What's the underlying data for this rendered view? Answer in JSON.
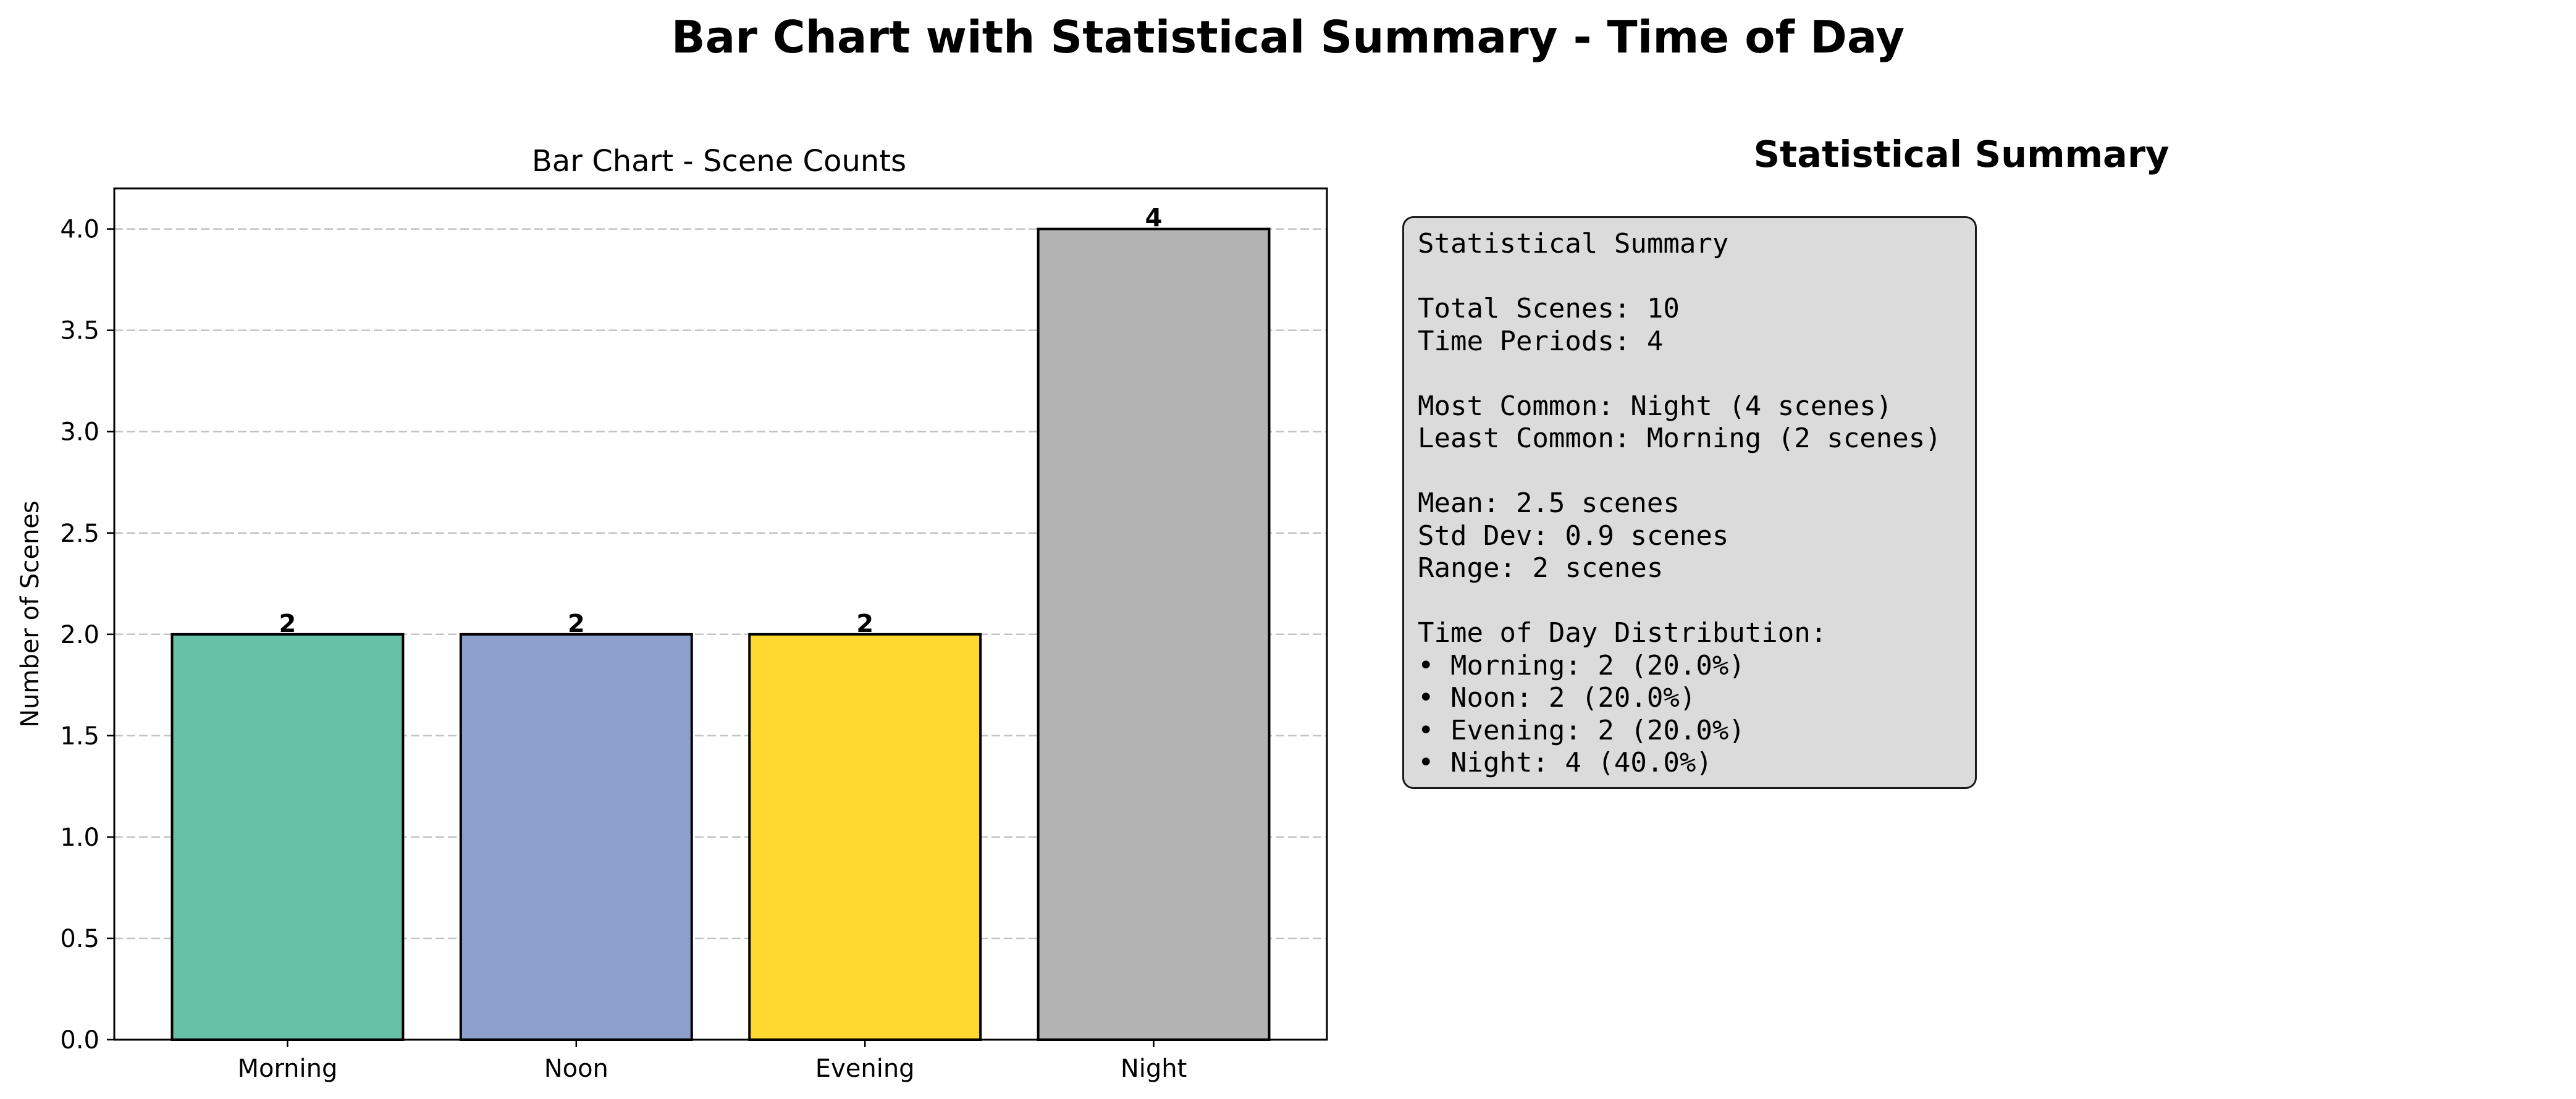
{
  "figure": {
    "title": "Bar Chart with Statistical Summary - Time of Day"
  },
  "chart_data": {
    "type": "bar",
    "title": "Bar Chart - Scene Counts",
    "xlabel": "",
    "ylabel": "Number of Scenes",
    "categories": [
      "Morning",
      "Noon",
      "Evening",
      "Night"
    ],
    "values": [
      2,
      2,
      2,
      4
    ],
    "data_labels": [
      "2",
      "2",
      "2",
      "4"
    ],
    "colors": [
      "#66c2a5",
      "#8da0cb",
      "#ffd92f",
      "#b3b3b3"
    ],
    "ylim": [
      0,
      4.2
    ],
    "yticks": [
      0.0,
      0.5,
      1.0,
      1.5,
      2.0,
      2.5,
      3.0,
      3.5,
      4.0
    ],
    "ytick_labels": [
      "0.0",
      "0.5",
      "1.0",
      "1.5",
      "2.0",
      "2.5",
      "3.0",
      "3.5",
      "4.0"
    ],
    "grid": "y-axis dashed",
    "edge_color": "#000000"
  },
  "summary": {
    "heading": "Statistical Summary",
    "lines": [
      "Statistical Summary",
      "",
      "Total Scenes: 10",
      "Time Periods: 4",
      "",
      "Most Common: Night (4 scenes)",
      "Least Common: Morning (2 scenes)",
      "",
      "Mean: 2.5 scenes",
      "Std Dev: 0.9 scenes",
      "Range: 2 scenes",
      "",
      "Time of Day Distribution:",
      "• Morning: 2 (20.0%)",
      "• Noon: 2 (20.0%)",
      "• Evening: 2 (20.0%)",
      "• Night: 4 (40.0%)"
    ]
  }
}
